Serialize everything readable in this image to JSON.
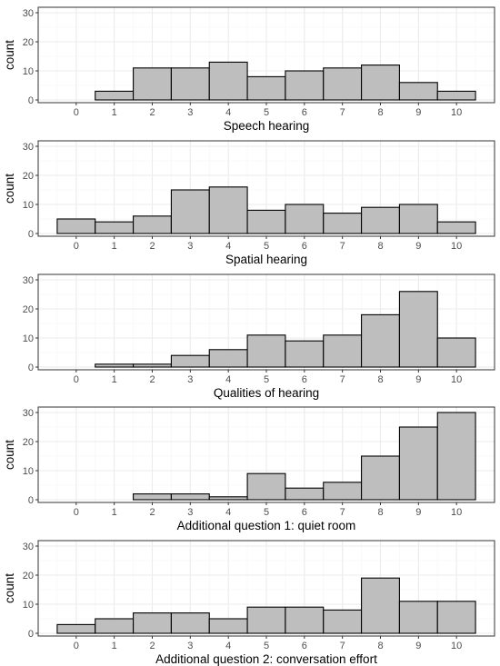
{
  "chart_data": [
    {
      "type": "bar",
      "xlabel": "Speech hearing",
      "ylabel": "count",
      "categories": [
        "0",
        "1",
        "2",
        "3",
        "4",
        "5",
        "6",
        "7",
        "8",
        "9",
        "10"
      ],
      "values": [
        0,
        3,
        11,
        11,
        13,
        8,
        10,
        11,
        12,
        6,
        3
      ],
      "ylim": [
        0,
        30
      ],
      "yticks": [
        0,
        10,
        20,
        30
      ],
      "grid": true
    },
    {
      "type": "bar",
      "xlabel": "Spatial hearing",
      "ylabel": "count",
      "categories": [
        "0",
        "1",
        "2",
        "3",
        "4",
        "5",
        "6",
        "7",
        "8",
        "9",
        "10"
      ],
      "values": [
        5,
        4,
        6,
        15,
        16,
        8,
        10,
        7,
        9,
        10,
        4
      ],
      "ylim": [
        0,
        30
      ],
      "yticks": [
        0,
        10,
        20,
        30
      ],
      "grid": true
    },
    {
      "type": "bar",
      "xlabel": "Qualities of hearing",
      "ylabel": "",
      "categories": [
        "0",
        "1",
        "2",
        "3",
        "4",
        "5",
        "6",
        "7",
        "8",
        "9",
        "10"
      ],
      "values": [
        0,
        1,
        1,
        4,
        6,
        11,
        9,
        11,
        18,
        26,
        10
      ],
      "ylim": [
        0,
        30
      ],
      "yticks": [
        0,
        10,
        20,
        30
      ],
      "grid": true
    },
    {
      "type": "bar",
      "xlabel": "Additional question 1: quiet room",
      "ylabel": "count",
      "categories": [
        "0",
        "1",
        "2",
        "3",
        "4",
        "5",
        "6",
        "7",
        "8",
        "9",
        "10"
      ],
      "values": [
        0,
        0,
        2,
        2,
        1,
        9,
        4,
        6,
        15,
        25,
        30
      ],
      "ylim": [
        0,
        30
      ],
      "yticks": [
        0,
        10,
        20,
        30
      ],
      "grid": true
    },
    {
      "type": "bar",
      "xlabel": "Additional question 2: conversation effort",
      "ylabel": "count",
      "categories": [
        "0",
        "1",
        "2",
        "3",
        "4",
        "5",
        "6",
        "7",
        "8",
        "9",
        "10"
      ],
      "values": [
        3,
        5,
        7,
        7,
        5,
        9,
        9,
        8,
        19,
        11,
        11
      ],
      "ylim": [
        0,
        30
      ],
      "yticks": [
        0,
        10,
        20,
        30
      ],
      "grid": true
    }
  ],
  "colors": {
    "bar_fill": "#bebebe",
    "bar_stroke": "#000000",
    "panel_border": "#333333",
    "grid_major": "#ebebeb",
    "grid_minor": "#f5f5f5",
    "tick_text": "#4d4d4d",
    "axis_title": "#000000"
  }
}
